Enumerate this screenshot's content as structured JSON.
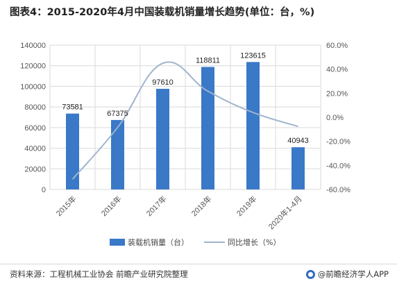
{
  "title": "图表4：2015-2020年4月中国装载机销量增长趋势(单位：台，%)",
  "source": "资料来源：工程机械工业协会 前瞻产业研究院整理",
  "logo_text": "@前瞻经济学人APP",
  "colors": {
    "bar": "#3a78c8",
    "line": "#9fb4cc",
    "grid": "#d9d9d9"
  },
  "chart_data": {
    "type": "bar",
    "title": "图表4：2015-2020年4月中国装载机销量增长趋势(单位：台，%)",
    "categories": [
      "2015年",
      "2016年",
      "2017年",
      "2018年",
      "2019年",
      "2020年1-4月"
    ],
    "series": [
      {
        "name": "装载机销量（台）",
        "type": "bar",
        "axis": "left",
        "values": [
          73581,
          67375,
          97610,
          118811,
          123615,
          40943
        ]
      },
      {
        "name": "同比增长（%）",
        "type": "line",
        "axis": "right",
        "smooth": true,
        "values": [
          -51.5,
          -8.4,
          44.9,
          21.7,
          4.0,
          -7.6
        ]
      }
    ],
    "y_left": {
      "ylim": [
        0,
        140000
      ],
      "ticks": [
        "0",
        "20000",
        "40000",
        "60000",
        "80000",
        "100000",
        "120000",
        "140000"
      ]
    },
    "y_right": {
      "ylim": [
        -60,
        60
      ],
      "ticks": [
        "-60.0%",
        "-40.0%",
        "-20.0%",
        "0.0%",
        "20.0%",
        "40.0%",
        "60.0%"
      ]
    },
    "data_labels": [
      "73581",
      "67375",
      "97610",
      "118811",
      "123615",
      "40943"
    ],
    "legend": {
      "position": "bottom"
    },
    "grid": "y-major"
  }
}
